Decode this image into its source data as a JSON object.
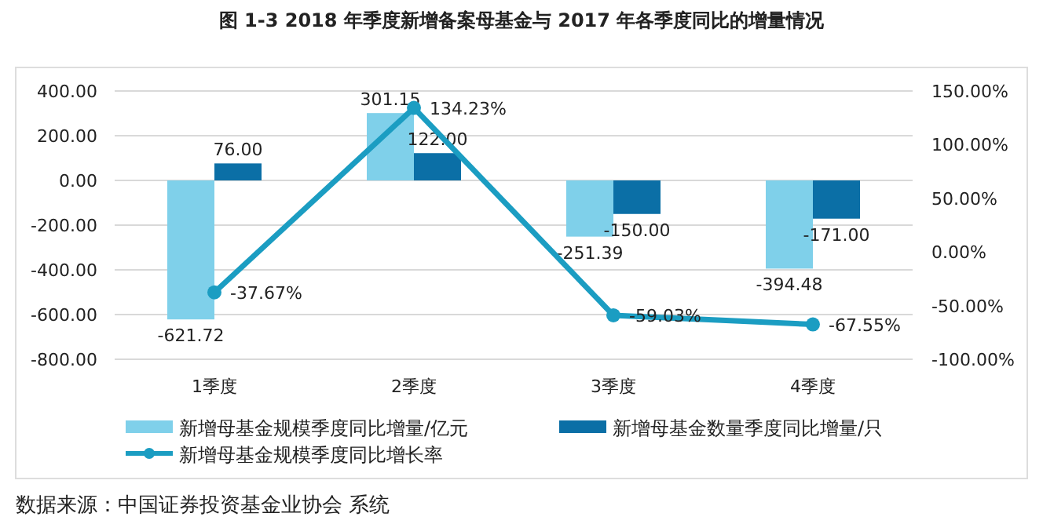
{
  "chart_data": {
    "type": "bar",
    "title": "图 1-3 2018 年季度新增备案母基金与 2017 年各季度同比的增量情况",
    "categories": [
      "1季度",
      "2季度",
      "3季度",
      "4季度"
    ],
    "series": [
      {
        "name": "新增母基金规模季度同比增量/亿元",
        "color": "#7fd0ea",
        "values": [
          -621.72,
          301.15,
          -251.39,
          -394.48
        ],
        "value_labels": [
          "-621.72",
          "301.15",
          "-251.39",
          "-394.48"
        ]
      },
      {
        "name": "新增母基金数量季度同比增量/只",
        "color": "#0b6fa6",
        "values": [
          76,
          122,
          -150,
          -171
        ],
        "value_labels": [
          "76.00",
          "122.00",
          "-150.00",
          "-171.00"
        ]
      },
      {
        "name": "新增母基金规模季度同比增长率",
        "type": "line",
        "axis": "y2",
        "color": "#1b9dc2",
        "marker": "circle",
        "values": [
          -37.67,
          134.23,
          -59.03,
          -67.55
        ],
        "value_labels": [
          "-37.67%",
          "134.23%",
          "-59.03%",
          "-67.55%"
        ]
      }
    ],
    "ylim": [
      -800,
      400
    ],
    "yticks": [
      {
        "value": -800,
        "label": "-800.00"
      },
      {
        "value": -600,
        "label": "-600.00"
      },
      {
        "value": -400,
        "label": "-400.00"
      },
      {
        "value": -200,
        "label": "-200.00"
      },
      {
        "value": 0,
        "label": "0.00"
      },
      {
        "value": 200,
        "label": "200.00"
      },
      {
        "value": 400,
        "label": "400.00"
      }
    ],
    "y2lim": [
      -100,
      150
    ],
    "y2ticks": [
      {
        "value": -100,
        "label": "-100.00%"
      },
      {
        "value": -50,
        "label": "-50.00%"
      },
      {
        "value": 0,
        "label": "0.00%"
      },
      {
        "value": 50,
        "label": "50.00%"
      },
      {
        "value": 100,
        "label": "100.00%"
      },
      {
        "value": 150,
        "label": "150.00%"
      }
    ],
    "grid": "y",
    "legend": "bottom",
    "annotations": [
      "数据来源：中国证券投资基金业协会 系统"
    ]
  }
}
